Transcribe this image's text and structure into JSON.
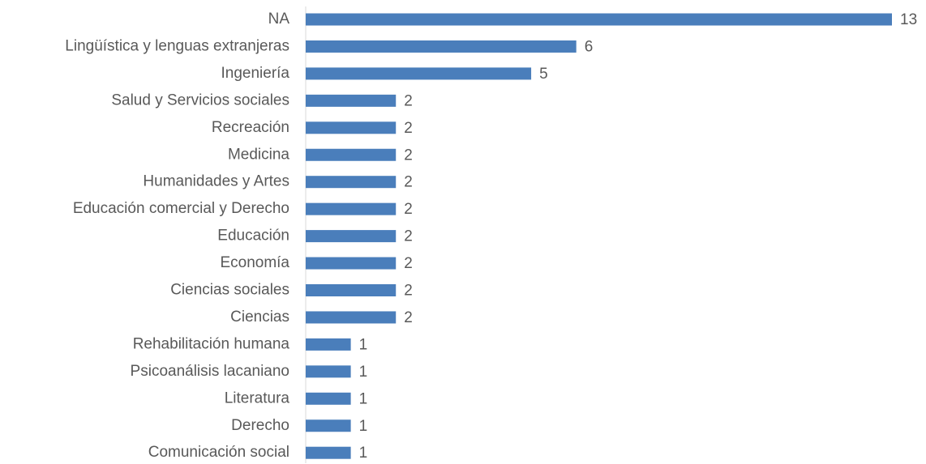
{
  "chart_data": {
    "type": "bar",
    "orientation": "horizontal",
    "categories": [
      "NA",
      "Lingüística y lenguas extranjeras",
      "Ingeniería",
      "Salud y Servicios sociales",
      "Recreación",
      "Medicina",
      "Humanidades y Artes",
      "Educación comercial y Derecho",
      "Educación",
      "Economía",
      "Ciencias sociales",
      "Ciencias",
      "Rehabilitación humana",
      "Psicoanálisis lacaniano",
      "Literatura",
      "Derecho",
      "Comunicación social"
    ],
    "values": [
      13,
      6,
      5,
      2,
      2,
      2,
      2,
      2,
      2,
      2,
      2,
      2,
      1,
      1,
      1,
      1,
      1
    ],
    "color": "#4a7ebb",
    "xlim": [
      0,
      13
    ]
  }
}
